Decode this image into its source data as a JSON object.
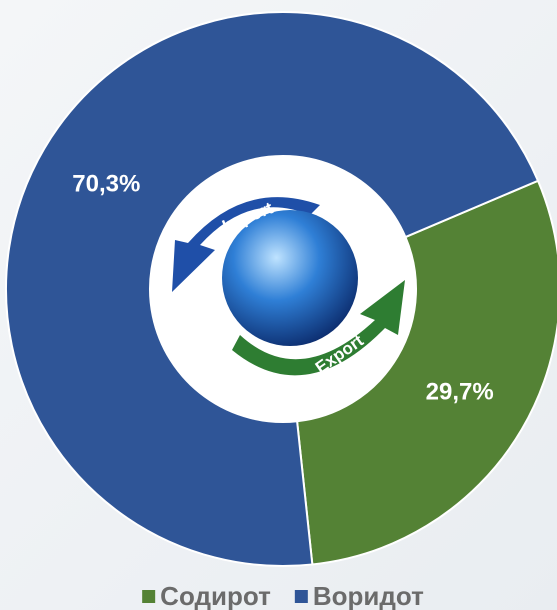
{
  "chart_data": {
    "type": "pie",
    "donut": true,
    "categories": [
      "Содирот",
      "Воридот"
    ],
    "values": [
      29.7,
      70.3
    ],
    "value_labels": [
      "29,7%",
      "70,3%"
    ],
    "colors": [
      "#548235",
      "#2f5597"
    ],
    "legend": "bottom",
    "annotations": [
      "Import",
      "Export"
    ]
  }
}
